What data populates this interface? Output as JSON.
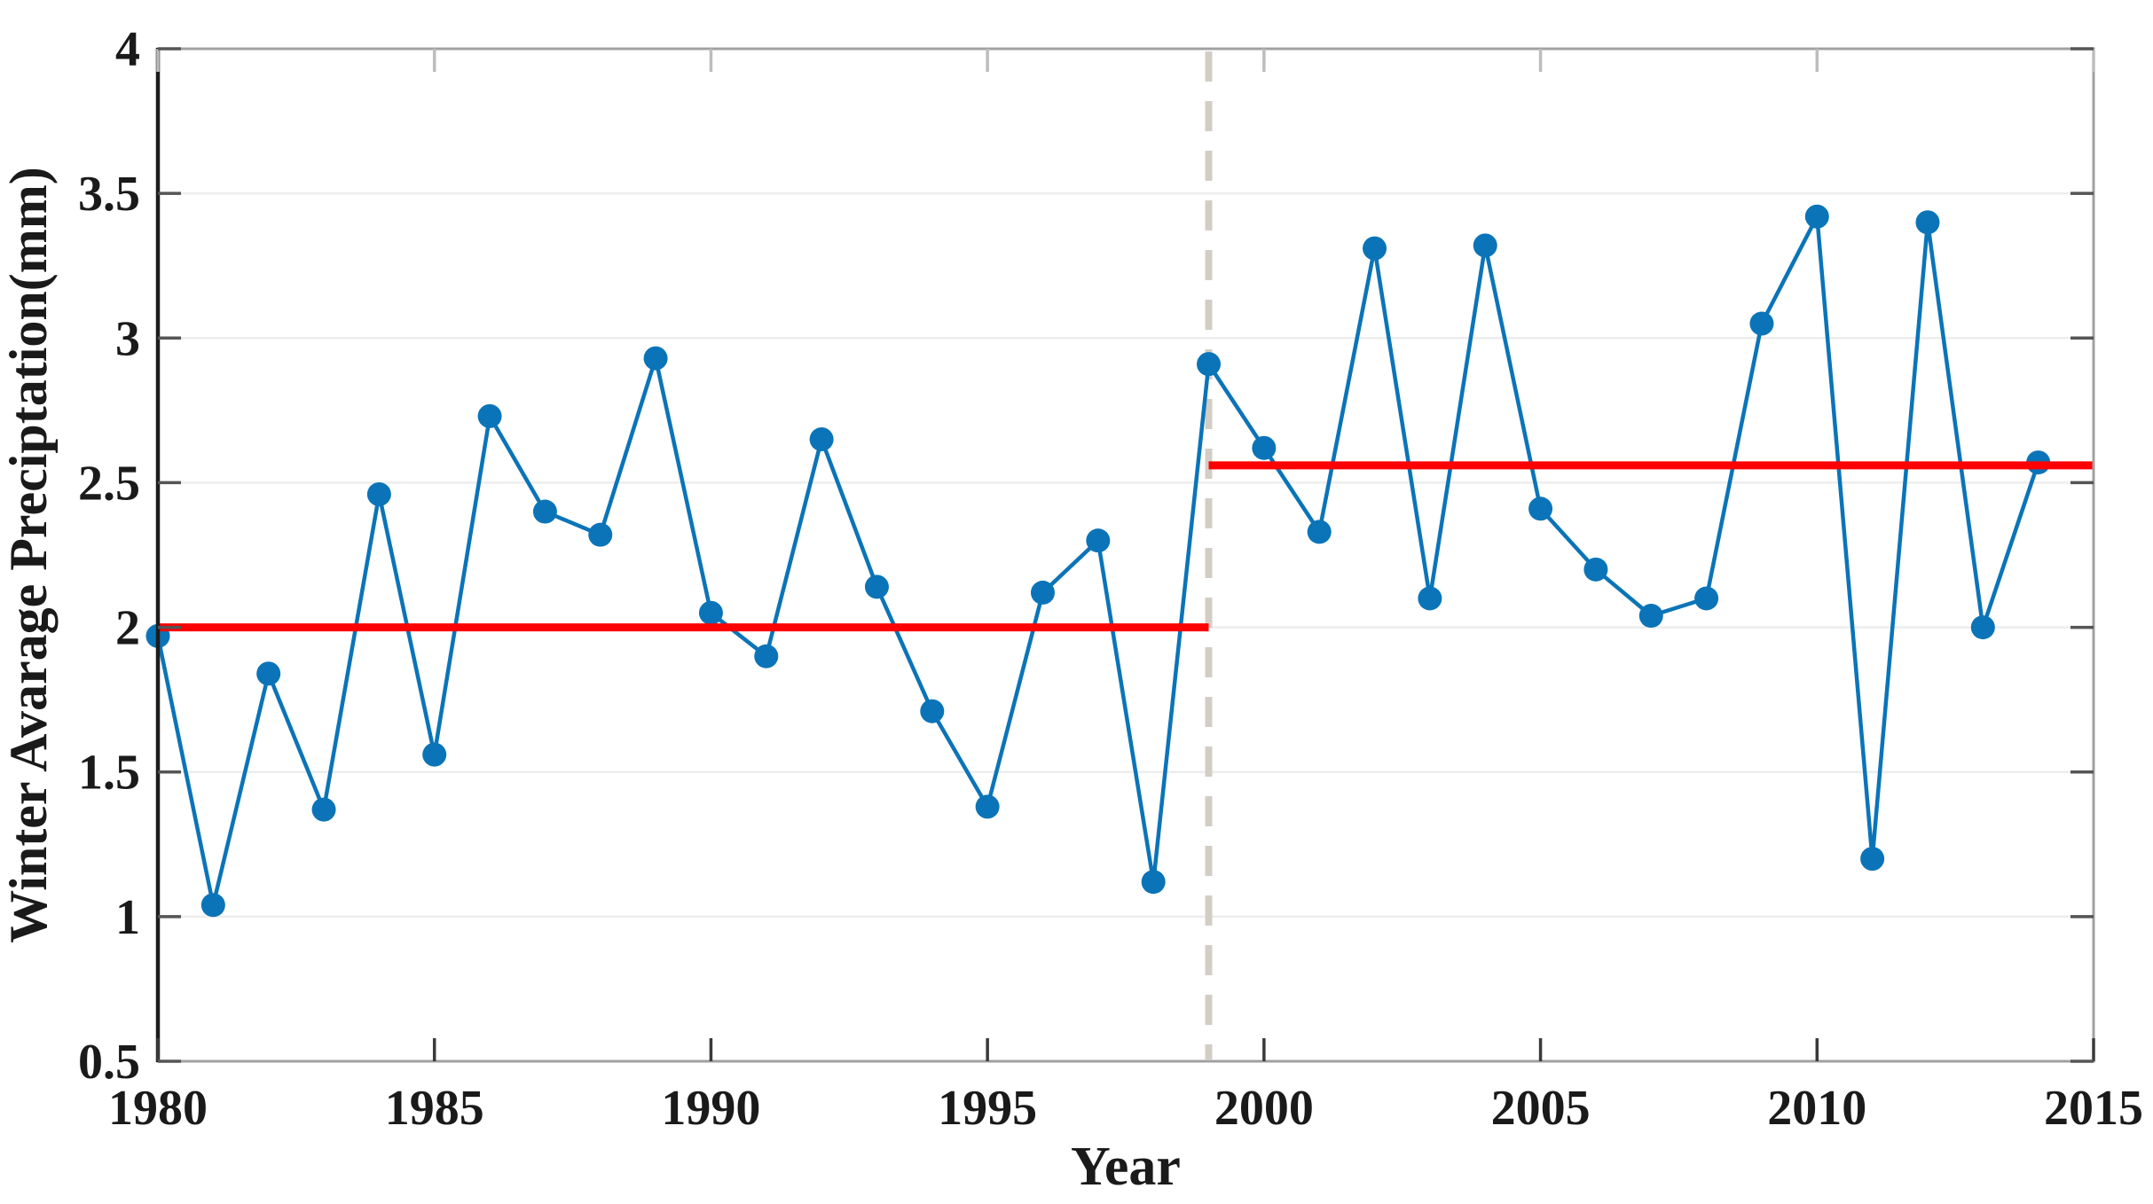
{
  "chart_data": {
    "type": "line",
    "title": "",
    "xlabel": "Year",
    "ylabel": "Winter Avarage Preciptation(mm)",
    "x": [
      1980,
      1981,
      1982,
      1983,
      1984,
      1985,
      1986,
      1987,
      1988,
      1989,
      1990,
      1991,
      1992,
      1993,
      1994,
      1995,
      1996,
      1997,
      1998,
      1999,
      2000,
      2001,
      2002,
      2003,
      2004,
      2005,
      2006,
      2007,
      2008,
      2009,
      2010,
      2011,
      2012,
      2013,
      2014
    ],
    "series": [
      {
        "name": "winter-average-precipitation",
        "marker": "circle",
        "values": [
          1.97,
          1.04,
          1.84,
          1.37,
          2.46,
          1.56,
          2.73,
          2.4,
          2.32,
          2.93,
          2.05,
          1.9,
          2.65,
          2.14,
          1.71,
          1.38,
          2.12,
          2.3,
          1.12,
          2.91,
          2.62,
          2.33,
          3.31,
          2.1,
          3.32,
          2.41,
          2.2,
          2.04,
          2.1,
          3.05,
          3.42,
          1.2,
          3.4,
          2.0,
          2.57
        ]
      }
    ],
    "xlim": [
      1980,
      2015
    ],
    "ylim": [
      0.5,
      4
    ],
    "xticks": [
      1980,
      1985,
      1990,
      1995,
      2000,
      2005,
      2010,
      2015
    ],
    "yticks": [
      0.5,
      1,
      1.5,
      2,
      2.5,
      3,
      3.5,
      4
    ],
    "grid": "horizontal",
    "legend": "none",
    "annotations": {
      "change_point_line": {
        "x": 1999,
        "style": "dashed"
      },
      "mean_lines": [
        {
          "name": "pre-change-mean",
          "value": 2.0,
          "x_start": 1980,
          "x_end": 1999
        },
        {
          "name": "post-change-mean",
          "value": 2.56,
          "x_start": 1999,
          "x_end": 2015
        }
      ]
    },
    "colors": {
      "series": "#0b74b8",
      "mean_line": "#fe0000",
      "change_point_line": "#d2cec5",
      "grid": "#ededed",
      "axis_left": "#1c1c1c",
      "axis_box": "#a0a0a0",
      "tick": "#555555",
      "text": "#1a1a1a"
    }
  }
}
